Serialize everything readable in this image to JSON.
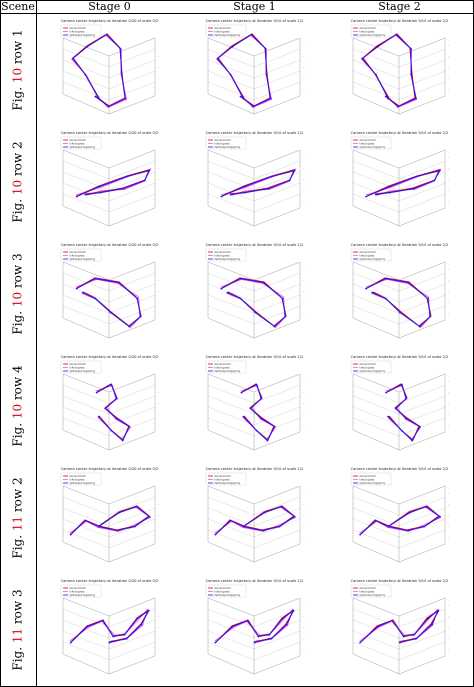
{
  "header": {
    "scene": "Scene",
    "stages": [
      "Stage 0",
      "Stage 1",
      "Stage 2"
    ]
  },
  "rows": [
    {
      "prefix": "Fig.",
      "fig": "10",
      "suffix": "row 1",
      "titles": [
        "Camera center trajectory at iteration 0/30 of scale 0/2",
        "Camera center trajectory at iteration 9/10 of scale 1/2",
        "Camera center trajectory at iteration 9/10 of scale 2/2"
      ]
    },
    {
      "prefix": "Fig.",
      "fig": "10",
      "suffix": "row 2",
      "titles": [
        "Camera center trajectory at iteration 0/30 of scale 0/2",
        "Camera center trajectory at iteration 9/10 of scale 1/2",
        "Camera center trajectory at iteration 9/10 of scale 2/2"
      ]
    },
    {
      "prefix": "Fig.",
      "fig": "10",
      "suffix": "row 3",
      "titles": [
        "Camera center trajectory at iteration 0/30 of scale 0/2",
        "Camera center trajectory at iteration 9/10 of scale 1/2",
        "Camera center trajectory at iteration 9/10 of scale 2/2"
      ]
    },
    {
      "prefix": "Fig.",
      "fig": "10",
      "suffix": "row 4",
      "titles": [
        "Camera center trajectory at iteration 0/30 of scale 0/2",
        "Camera center trajectory at iteration 9/10 of scale 1/2",
        "Camera center trajectory at iteration 9/10 of scale 2/2"
      ]
    },
    {
      "prefix": "Fig.",
      "fig": "11",
      "suffix": "row 2",
      "titles": [
        "Camera center trajectory at iteration 0/30 of scale 0/2",
        "Camera center trajectory at iteration 9/10 of scale 1/2",
        "Camera center trajectory at iteration 9/10 of scale 2/2"
      ]
    },
    {
      "prefix": "Fig.",
      "fig": "11",
      "suffix": "row 3",
      "titles": [
        "Camera center trajectory at iteration 0/30 of scale 0/2",
        "Camera center trajectory at iteration 9/10 of scale 1/2",
        "Camera center trajectory at iteration 9/10 of scale 2/2"
      ]
    }
  ],
  "legend": [
    "Ground truth",
    "Initial guess",
    "Optimized trajectory"
  ],
  "colors": {
    "fig_ref": "#d4000f",
    "gt": "#d4000f",
    "init": "#ee55ee",
    "opt": "#1a1aff",
    "axes": "#888888"
  }
}
